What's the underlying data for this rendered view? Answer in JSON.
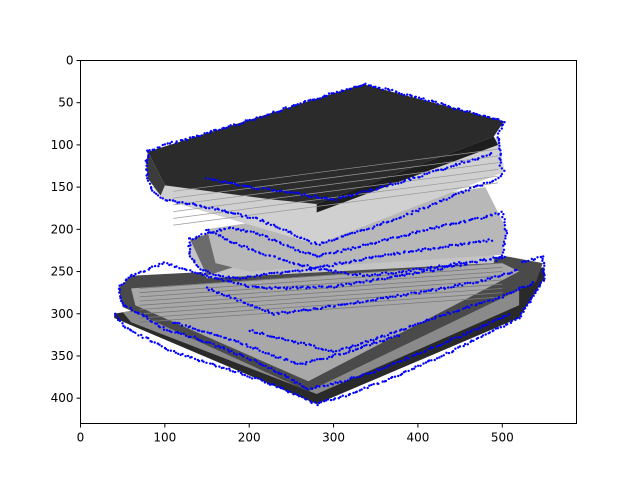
{
  "chart_data": {
    "type": "scatter",
    "title": "",
    "xlabel": "",
    "ylabel": "",
    "xlim": [
      0,
      588
    ],
    "ylim": [
      430,
      0
    ],
    "y_inverted": true,
    "grid": false,
    "background_image": "grayscale-photo-stack-of-books",
    "x_ticks": [
      "0",
      "100",
      "200",
      "300",
      "400",
      "500"
    ],
    "y_ticks": [
      "0",
      "50",
      "100",
      "150",
      "200",
      "250",
      "300",
      "350",
      "400"
    ],
    "marker_color": "#0000ff",
    "series": [
      {
        "outlines": [
          [
            [
              80,
              108
            ],
            [
              100,
              100
            ],
            [
              130,
              92
            ],
            [
              170,
              80
            ],
            [
              210,
              68
            ],
            [
              250,
              55
            ],
            [
              290,
              42
            ],
            [
              335,
              28
            ],
            [
              370,
              36
            ],
            [
              410,
              47
            ],
            [
              450,
              58
            ],
            [
              480,
              66
            ],
            [
              502,
              72
            ],
            [
              495,
              90
            ],
            [
              498,
              110
            ],
            [
              498,
              125
            ],
            [
              503,
              132
            ]
          ],
          [
            [
              80,
              108
            ],
            [
              78,
              125
            ],
            [
              80,
              140
            ],
            [
              86,
              155
            ],
            [
              100,
              165
            ],
            [
              130,
              170
            ],
            [
              170,
              178
            ],
            [
              210,
              188
            ],
            [
              240,
              200
            ],
            [
              265,
              212
            ],
            [
              280,
              218
            ],
            [
              300,
              212
            ],
            [
              340,
              200
            ],
            [
              380,
              185
            ],
            [
              420,
              170
            ],
            [
              460,
              153
            ],
            [
              490,
              142
            ],
            [
              503,
              132
            ]
          ],
          [
            [
              150,
              140
            ],
            [
              200,
              150
            ],
            [
              260,
              158
            ],
            [
              300,
              165
            ],
            [
              350,
              152
            ],
            [
              400,
              138
            ],
            [
              450,
              122
            ],
            [
              490,
              110
            ]
          ],
          [
            [
              130,
              212
            ],
            [
              150,
              205
            ],
            [
              175,
              198
            ],
            [
              210,
              205
            ],
            [
              250,
              222
            ],
            [
              280,
              232
            ],
            [
              300,
              228
            ],
            [
              340,
              218
            ],
            [
              380,
              208
            ],
            [
              420,
              198
            ],
            [
              460,
              190
            ],
            [
              500,
              180
            ],
            [
              505,
              205
            ],
            [
              500,
              230
            ],
            [
              492,
              240
            ]
          ],
          [
            [
              130,
              212
            ],
            [
              128,
              230
            ],
            [
              140,
              245
            ],
            [
              160,
              255
            ],
            [
              190,
              258
            ],
            [
              230,
              252
            ],
            [
              270,
              248
            ],
            [
              310,
              240
            ],
            [
              350,
              233
            ],
            [
              400,
              225
            ],
            [
              450,
              218
            ],
            [
              490,
              212
            ]
          ],
          [
            [
              60,
              255
            ],
            [
              45,
              270
            ],
            [
              50,
              290
            ],
            [
              70,
              300
            ],
            [
              100,
              318
            ],
            [
              140,
              330
            ],
            [
              180,
              345
            ],
            [
              220,
              362
            ],
            [
              250,
              378
            ],
            [
              270,
              390
            ]
          ],
          [
            [
              60,
              255
            ],
            [
              100,
              240
            ],
            [
              150,
              255
            ],
            [
              200,
              268
            ],
            [
              240,
              270
            ],
            [
              300,
              268
            ],
            [
              360,
              258
            ],
            [
              420,
              248
            ],
            [
              470,
              238
            ],
            [
              505,
              232
            ]
          ],
          [
            [
              150,
              270
            ],
            [
              190,
              285
            ],
            [
              230,
              300
            ],
            [
              270,
              295
            ],
            [
              320,
              288
            ],
            [
              380,
              278
            ],
            [
              430,
              270
            ],
            [
              480,
              260
            ],
            [
              520,
              248
            ]
          ],
          [
            [
              40,
              300
            ],
            [
              55,
              318
            ],
            [
              80,
              330
            ],
            [
              110,
              345
            ],
            [
              150,
              358
            ],
            [
              190,
              370
            ],
            [
              230,
              385
            ],
            [
              260,
              398
            ],
            [
              280,
              407
            ]
          ],
          [
            [
              280,
              407
            ],
            [
              320,
              395
            ],
            [
              360,
              380
            ],
            [
              400,
              362
            ],
            [
              440,
              345
            ],
            [
              480,
              325
            ],
            [
              520,
              305
            ],
            [
              550,
              258
            ],
            [
              548,
              232
            ],
            [
              520,
              240
            ]
          ],
          [
            [
              200,
              320
            ],
            [
              250,
              332
            ],
            [
              300,
              345
            ],
            [
              350,
              330
            ],
            [
              400,
              312
            ],
            [
              450,
              295
            ],
            [
              500,
              280
            ],
            [
              540,
              262
            ]
          ],
          [
            [
              270,
              390
            ],
            [
              310,
              380
            ],
            [
              350,
              368
            ],
            [
              390,
              352
            ],
            [
              430,
              335
            ],
            [
              470,
              318
            ],
            [
              510,
              300
            ]
          ],
          [
            [
              150,
              200
            ],
            [
              180,
              215
            ],
            [
              220,
              230
            ],
            [
              260,
              242
            ],
            [
              300,
              250
            ],
            [
              340,
              255
            ],
            [
              380,
              250
            ],
            [
              420,
              245
            ],
            [
              460,
              238
            ]
          ],
          [
            [
              110,
              310
            ],
            [
              150,
              322
            ],
            [
              190,
              335
            ],
            [
              230,
              350
            ],
            [
              260,
              360
            ],
            [
              300,
              350
            ],
            [
              340,
              338
            ],
            [
              380,
              325
            ]
          ]
        ]
      }
    ]
  }
}
